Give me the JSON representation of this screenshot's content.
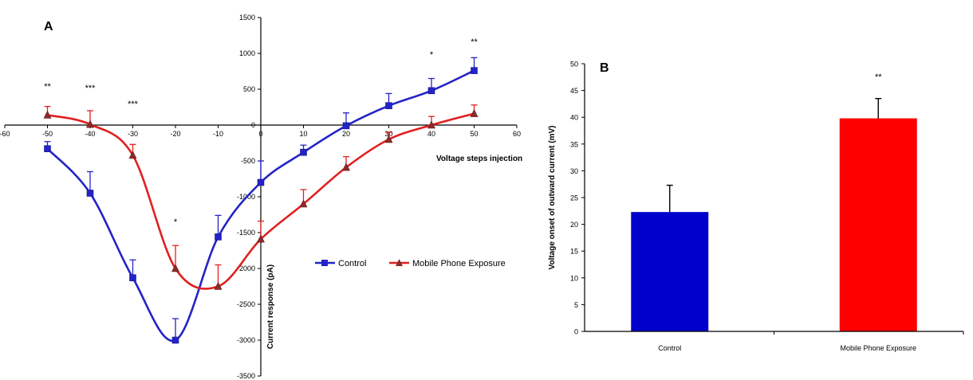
{
  "chart_data": [
    {
      "id": "A",
      "type": "line",
      "panel_label": "A",
      "xlabel": "Voltage steps injection",
      "ylabel": "Current response (pA)",
      "xlim": [
        -60,
        60
      ],
      "ylim": [
        -3500,
        1500
      ],
      "x_ticks": [
        -60,
        -50,
        -40,
        -30,
        -20,
        -10,
        0,
        10,
        20,
        30,
        40,
        50,
        60
      ],
      "y_ticks": [
        1500,
        1000,
        500,
        0,
        -500,
        -1000,
        -1500,
        -2000,
        -2500,
        -3000,
        -3500
      ],
      "x": [
        -50,
        -40,
        -30,
        -20,
        -10,
        0,
        10,
        20,
        30,
        40,
        50
      ],
      "series": [
        {
          "name": "Control",
          "color": "#2323C8",
          "marker": "square",
          "values": [
            -330,
            -950,
            -2130,
            -3000,
            -1560,
            -800,
            -380,
            -10,
            270,
            480,
            760
          ],
          "errors": [
            100,
            300,
            250,
            300,
            300,
            300,
            100,
            180,
            170,
            170,
            180
          ]
        },
        {
          "name": "Mobile Phone Exposure",
          "color": "#E02020",
          "marker": "triangle",
          "values": [
            140,
            10,
            -420,
            -2000,
            -2250,
            -1590,
            -1100,
            -590,
            -200,
            0,
            160
          ],
          "errors": [
            120,
            190,
            150,
            320,
            300,
            250,
            200,
            150,
            100,
            120,
            120
          ]
        }
      ],
      "annotations": [
        {
          "x": -50,
          "text": "**"
        },
        {
          "x": -40,
          "text": "***"
        },
        {
          "x": -30,
          "text": "***"
        },
        {
          "x": -20,
          "text": "*"
        },
        {
          "x": 40,
          "text": "*"
        },
        {
          "x": 50,
          "text": "**"
        }
      ],
      "legend_position": "right"
    },
    {
      "id": "B",
      "type": "bar",
      "panel_label": "B",
      "categories": [
        "Control",
        "Mobile Phone Exposure"
      ],
      "values": [
        22.3,
        39.8
      ],
      "errors": [
        5.0,
        3.7
      ],
      "colors": [
        "#0000CC",
        "#FF0000"
      ],
      "ylabel": "Voltage onset of outward current (mV)",
      "ylim": [
        0,
        50
      ],
      "y_ticks": [
        0,
        5,
        10,
        15,
        20,
        25,
        30,
        35,
        40,
        45,
        50
      ],
      "annotations": [
        {
          "category": "Mobile Phone Exposure",
          "text": "**"
        }
      ]
    }
  ]
}
